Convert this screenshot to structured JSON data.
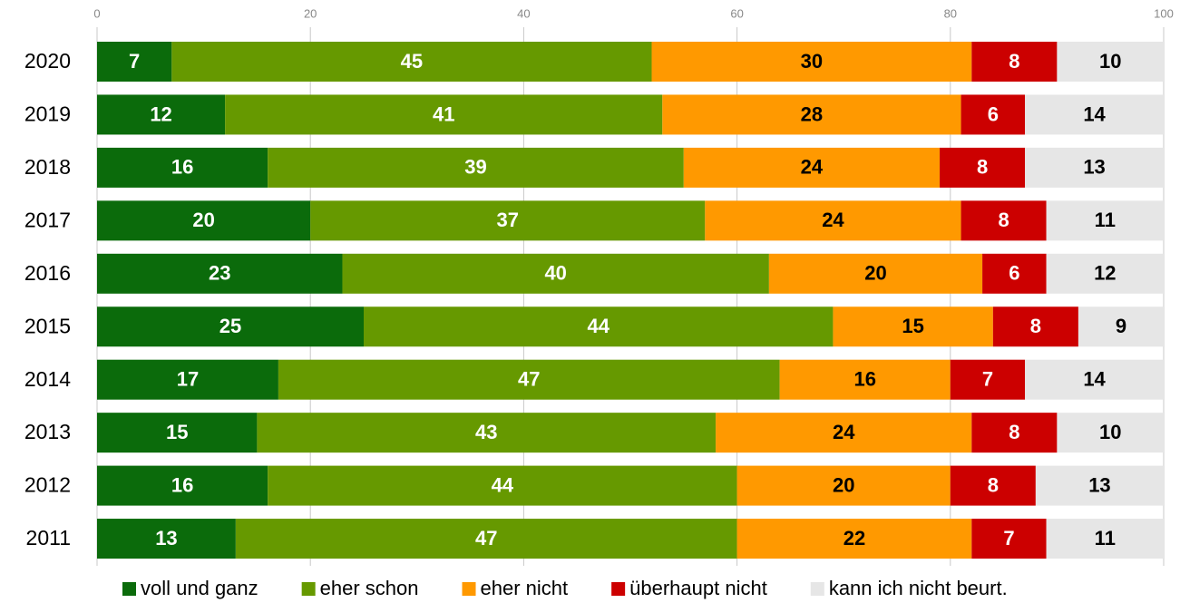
{
  "chart_data": {
    "type": "stacked_barh",
    "categories": [
      "2020",
      "2019",
      "2018",
      "2017",
      "2016",
      "2015",
      "2014",
      "2013",
      "2012",
      "2011"
    ],
    "series": [
      {
        "name": "voll und ganz",
        "color": "#0b6b0b",
        "label_color": "#ffffff",
        "values": [
          7,
          12,
          16,
          20,
          23,
          25,
          17,
          15,
          16,
          13
        ]
      },
      {
        "name": "eher schon",
        "color": "#669900",
        "label_color": "#ffffff",
        "values": [
          45,
          41,
          39,
          37,
          40,
          44,
          47,
          43,
          44,
          47
        ]
      },
      {
        "name": "eher nicht",
        "color": "#ff9900",
        "label_color": "#000000",
        "values": [
          30,
          28,
          24,
          24,
          20,
          15,
          16,
          24,
          20,
          22
        ]
      },
      {
        "name": "überhaupt nicht",
        "color": "#cc0000",
        "label_color": "#ffffff",
        "values": [
          8,
          6,
          8,
          8,
          6,
          8,
          7,
          8,
          8,
          7
        ]
      },
      {
        "name": "kann ich nicht beurt.",
        "color": "#e6e6e6",
        "label_color": "#000000",
        "values": [
          10,
          14,
          13,
          11,
          12,
          9,
          14,
          10,
          13,
          11
        ]
      }
    ],
    "xlim": [
      0,
      100
    ],
    "xticks": [
      0,
      20,
      40,
      60,
      80,
      100
    ],
    "grid": true,
    "legend": "bottom"
  }
}
